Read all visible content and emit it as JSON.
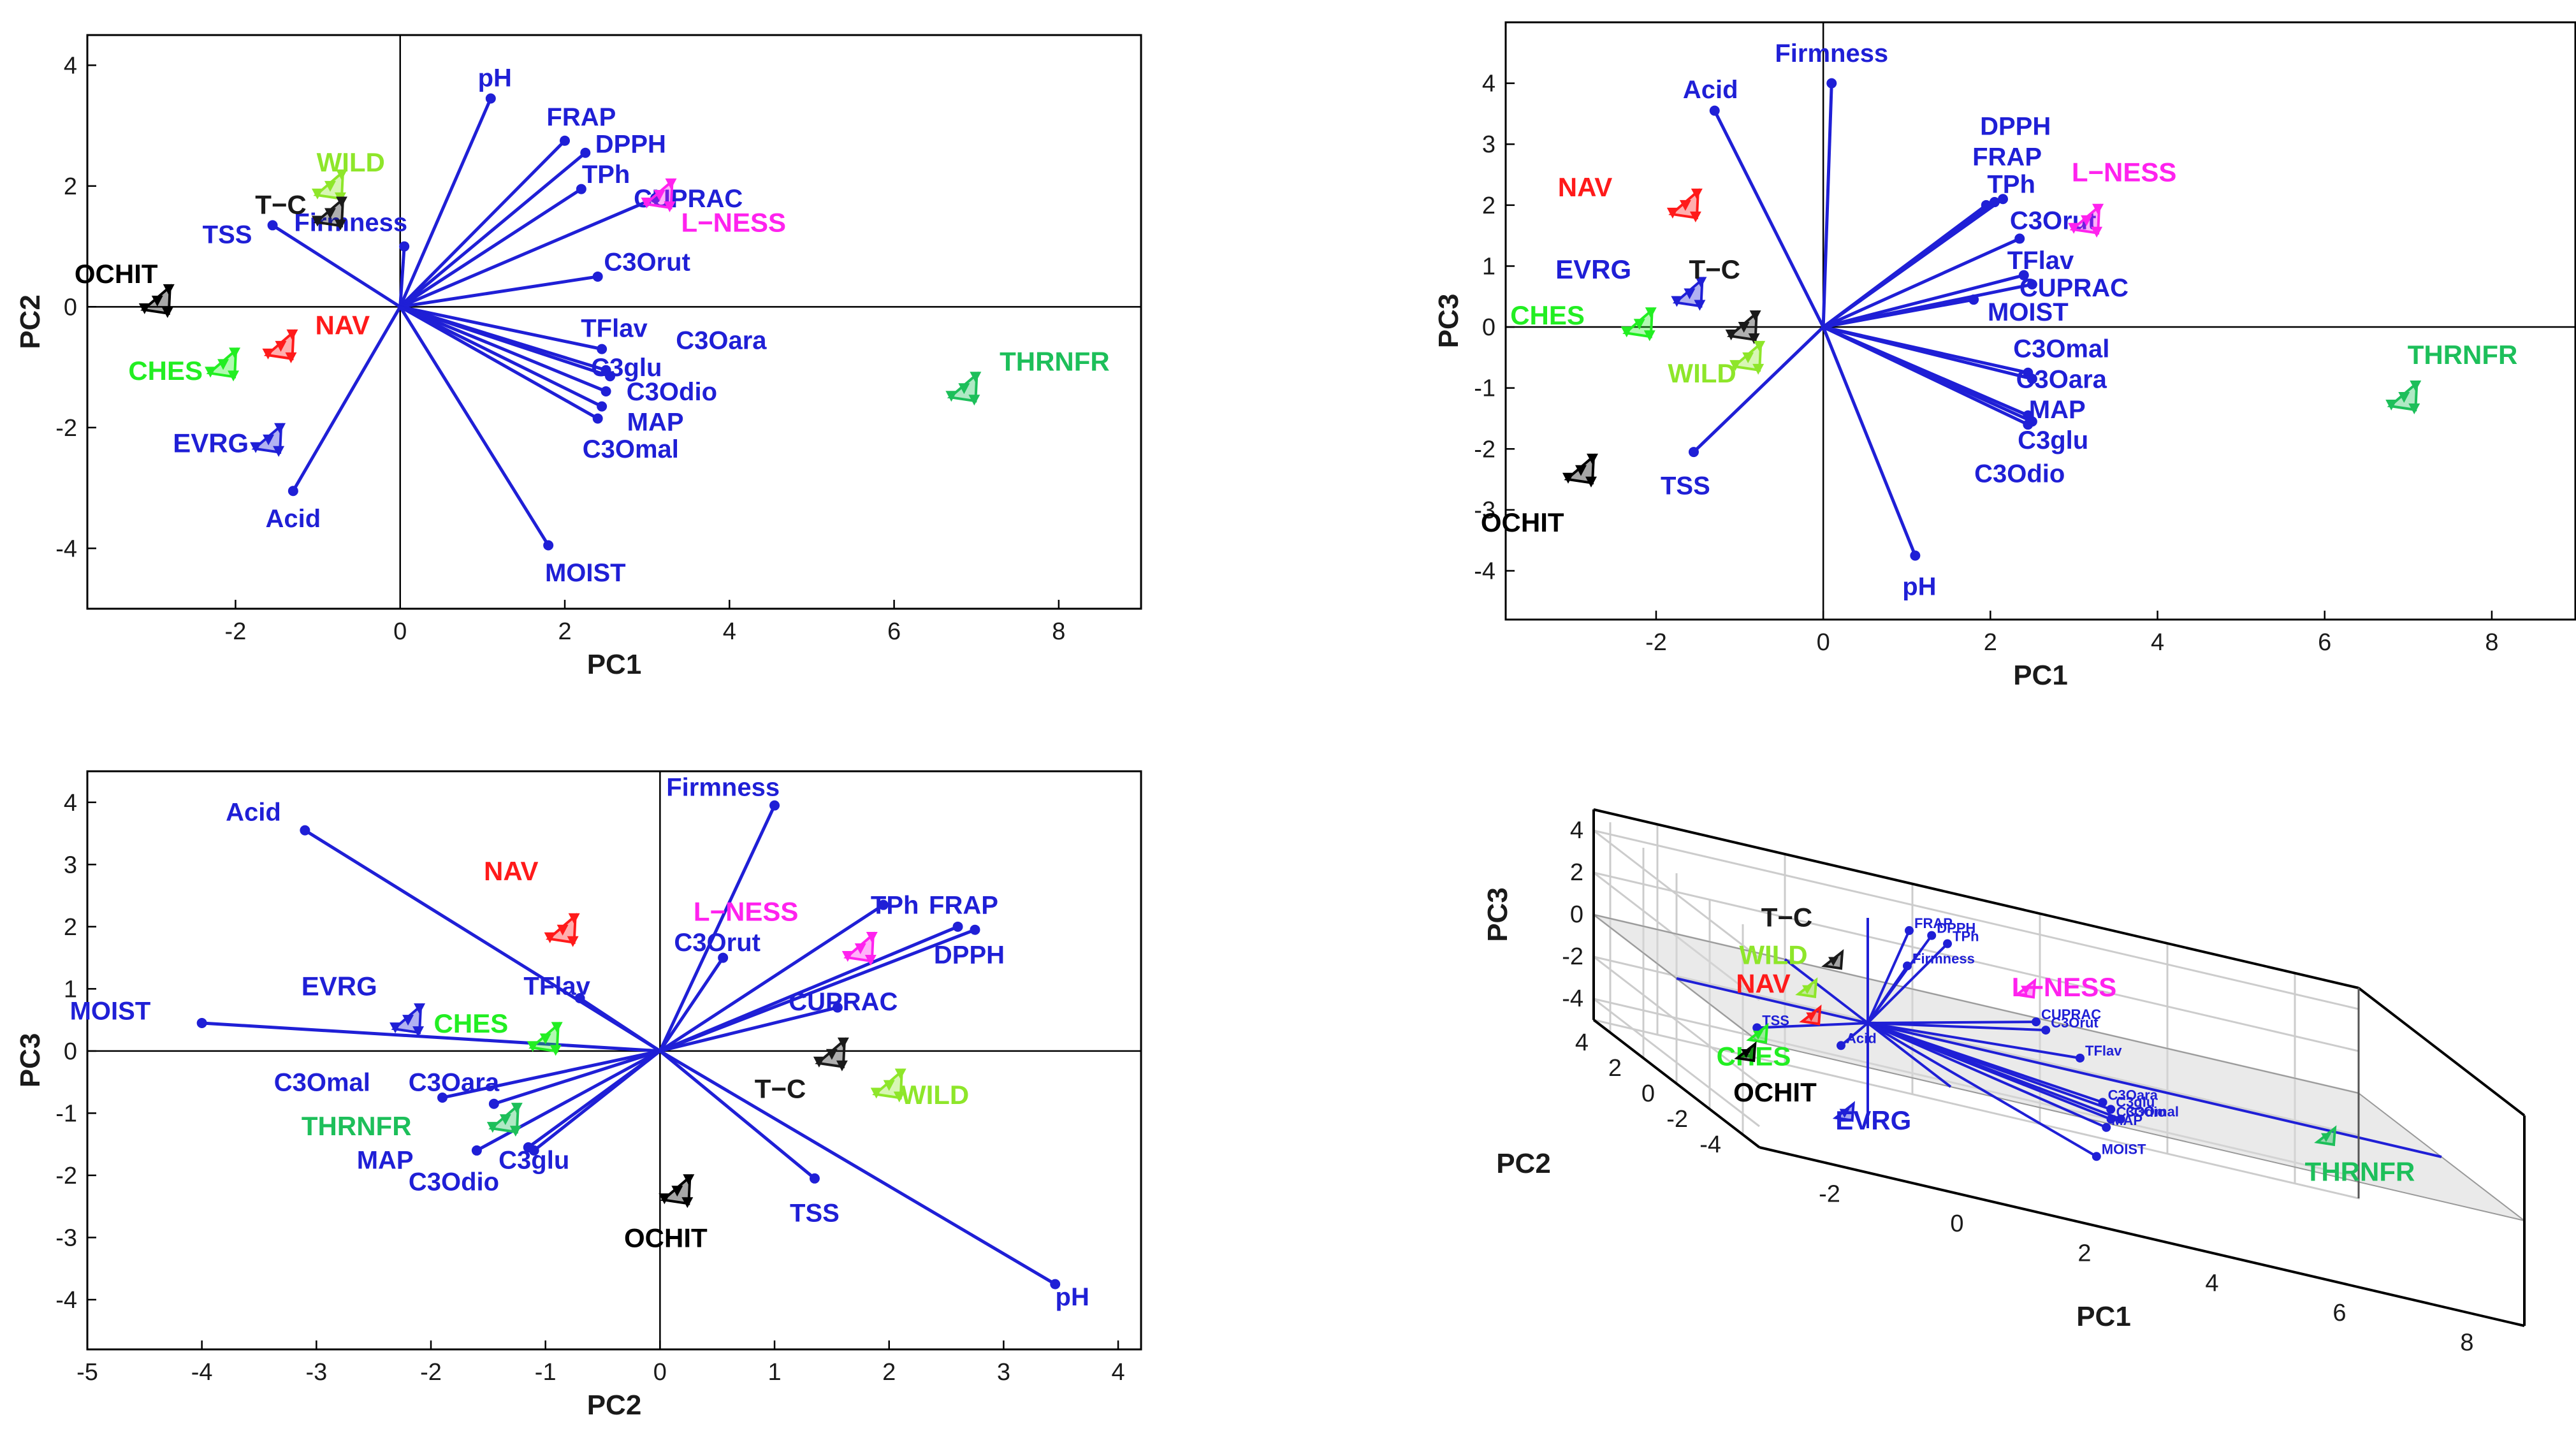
{
  "colors": {
    "vector": "#1f1fd6",
    "axis": "#000000"
  },
  "chart_data": [
    {
      "type": "scatter",
      "title": "",
      "xlabel": "PC1",
      "ylabel": "PC2",
      "xlim": [
        -3.8,
        9
      ],
      "ylim": [
        -5,
        4.5
      ],
      "xticks": [
        -2,
        0,
        2,
        4,
        6,
        8
      ],
      "yticks": [
        -4,
        -2,
        0,
        2,
        4
      ],
      "vectors": [
        {
          "name": "pH",
          "x": 1.1,
          "y": 3.45,
          "lx": 1.15,
          "ly": 3.8
        },
        {
          "name": "FRAP",
          "x": 2.0,
          "y": 2.75,
          "lx": 2.2,
          "ly": 3.15
        },
        {
          "name": "DPPH",
          "x": 2.25,
          "y": 2.55,
          "lx": 2.8,
          "ly": 2.7
        },
        {
          "name": "TPh",
          "x": 2.2,
          "y": 1.95,
          "lx": 2.5,
          "ly": 2.2
        },
        {
          "name": "CUPRAC",
          "x": 3.1,
          "y": 1.8,
          "lx": 3.5,
          "ly": 1.8
        },
        {
          "name": "Firmness",
          "x": 0.05,
          "y": 1.0,
          "lx": -0.6,
          "ly": 1.4
        },
        {
          "name": "TSS",
          "x": -1.55,
          "y": 1.35,
          "lx": -2.1,
          "ly": 1.2
        },
        {
          "name": "C3Orut",
          "x": 2.4,
          "y": 0.5,
          "lx": 3.0,
          "ly": 0.75
        },
        {
          "name": "TFlav",
          "x": 2.45,
          "y": -0.7,
          "lx": 2.6,
          "ly": -0.35
        },
        {
          "name": "C3Oara",
          "x": 2.5,
          "y": -1.05,
          "lx": 3.9,
          "ly": -0.55
        },
        {
          "name": "C3glu",
          "x": 2.55,
          "y": -1.15,
          "lx": 2.75,
          "ly": -1.0
        },
        {
          "name": "C3Odio",
          "x": 2.5,
          "y": -1.4,
          "lx": 3.3,
          "ly": -1.4
        },
        {
          "name": "MAP",
          "x": 2.45,
          "y": -1.65,
          "lx": 3.1,
          "ly": -1.9
        },
        {
          "name": "C3Omal",
          "x": 2.4,
          "y": -1.85,
          "lx": 2.8,
          "ly": -2.35
        },
        {
          "name": "Acid",
          "x": -1.3,
          "y": -3.05,
          "lx": -1.3,
          "ly": -3.5
        },
        {
          "name": "MOIST",
          "x": 1.8,
          "y": -3.95,
          "lx": 2.25,
          "ly": -4.4
        }
      ],
      "groups": [
        {
          "name": "WILD",
          "color": "#8ee62a",
          "x": -0.85,
          "y": 2.0,
          "lx": -0.6,
          "ly": 2.4
        },
        {
          "name": "T−C",
          "color": "#1a1a1a",
          "x": -0.85,
          "y": 1.55,
          "lx": -1.45,
          "ly": 1.7
        },
        {
          "name": "L−NESS",
          "color": "#ff22ee",
          "x": 3.15,
          "y": 1.85,
          "lx": 4.05,
          "ly": 1.4
        },
        {
          "name": "OCHIT",
          "color": "#000000",
          "x": -2.95,
          "y": 0.1,
          "lx": -3.45,
          "ly": 0.55
        },
        {
          "name": "NAV",
          "color": "#ff1a1a",
          "x": -1.45,
          "y": -0.65,
          "lx": -0.7,
          "ly": -0.3
        },
        {
          "name": "CHES",
          "color": "#22ee22",
          "x": -2.15,
          "y": -0.95,
          "lx": -2.85,
          "ly": -1.05
        },
        {
          "name": "EVRG",
          "color": "#1f1fd6",
          "x": -1.6,
          "y": -2.2,
          "lx": -2.3,
          "ly": -2.25
        },
        {
          "name": "THRNFR",
          "color": "#1dbf5a",
          "x": 6.85,
          "y": -1.35,
          "lx": 7.95,
          "ly": -0.9
        }
      ]
    },
    {
      "type": "scatter",
      "title": "",
      "xlabel": "PC1",
      "ylabel": "PC3",
      "xlim": [
        -3.8,
        9
      ],
      "ylim": [
        -4.8,
        5
      ],
      "xticks": [
        -2,
        0,
        2,
        4,
        6,
        8
      ],
      "yticks": [
        -4,
        -3,
        -2,
        -1,
        0,
        1,
        2,
        3,
        4
      ],
      "vectors": [
        {
          "name": "Firmness",
          "x": 0.1,
          "y": 4.0,
          "lx": 0.1,
          "ly": 4.5
        },
        {
          "name": "Acid",
          "x": -1.3,
          "y": 3.55,
          "lx": -1.35,
          "ly": 3.9
        },
        {
          "name": "DPPH",
          "x": 2.05,
          "y": 2.05,
          "lx": 2.3,
          "ly": 3.3
        },
        {
          "name": "FRAP",
          "x": 1.95,
          "y": 2.0,
          "lx": 2.2,
          "ly": 2.8
        },
        {
          "name": "TPh",
          "x": 2.15,
          "y": 2.1,
          "lx": 2.25,
          "ly": 2.35
        },
        {
          "name": "C3Orut",
          "x": 2.35,
          "y": 1.45,
          "lx": 2.75,
          "ly": 1.75
        },
        {
          "name": "TFlav",
          "x": 2.4,
          "y": 0.85,
          "lx": 2.6,
          "ly": 1.1
        },
        {
          "name": "CUPRAC",
          "x": 2.5,
          "y": 0.7,
          "lx": 3.0,
          "ly": 0.65
        },
        {
          "name": "MOIST",
          "x": 1.8,
          "y": 0.45,
          "lx": 2.45,
          "ly": 0.25
        },
        {
          "name": "C3Omal",
          "x": 2.45,
          "y": -0.75,
          "lx": 2.85,
          "ly": -0.35
        },
        {
          "name": "C3Oara",
          "x": 2.5,
          "y": -0.85,
          "lx": 2.85,
          "ly": -0.85
        },
        {
          "name": "MAP",
          "x": 2.45,
          "y": -1.45,
          "lx": 2.8,
          "ly": -1.35
        },
        {
          "name": "C3glu",
          "x": 2.5,
          "y": -1.55,
          "lx": 2.75,
          "ly": -1.85
        },
        {
          "name": "C3Odio",
          "x": 2.45,
          "y": -1.6,
          "lx": 2.35,
          "ly": -2.4
        },
        {
          "name": "TSS",
          "x": -1.55,
          "y": -2.05,
          "lx": -1.65,
          "ly": -2.6
        },
        {
          "name": "pH",
          "x": 1.1,
          "y": -3.75,
          "lx": 1.15,
          "ly": -4.25
        }
      ],
      "groups": [
        {
          "name": "NAV",
          "color": "#ff1a1a",
          "x": -1.65,
          "y": 2.0,
          "lx": -2.85,
          "ly": 2.3
        },
        {
          "name": "L−NESS",
          "color": "#ff22ee",
          "x": 3.15,
          "y": 1.75,
          "lx": 3.6,
          "ly": 2.55
        },
        {
          "name": "EVRG",
          "color": "#1f1fd6",
          "x": -1.6,
          "y": 0.55,
          "lx": -2.75,
          "ly": 0.95
        },
        {
          "name": "T−C",
          "color": "#1a1a1a",
          "x": -0.95,
          "y": 0.0,
          "lx": -1.3,
          "ly": 0.95
        },
        {
          "name": "CHES",
          "color": "#22ee22",
          "x": -2.2,
          "y": 0.05,
          "lx": -3.3,
          "ly": 0.2
        },
        {
          "name": "WILD",
          "color": "#8ee62a",
          "x": -0.9,
          "y": -0.5,
          "lx": -1.45,
          "ly": -0.75
        },
        {
          "name": "THRNFR",
          "color": "#1dbf5a",
          "x": 6.95,
          "y": -1.15,
          "lx": 7.65,
          "ly": -0.45
        },
        {
          "name": "OCHIT",
          "color": "#000000",
          "x": -2.9,
          "y": -2.35,
          "lx": -3.6,
          "ly": -3.2
        }
      ]
    },
    {
      "type": "scatter",
      "title": "",
      "xlabel": "PC2",
      "ylabel": "PC3",
      "xlim": [
        -5,
        4.2
      ],
      "ylim": [
        -4.8,
        4.5
      ],
      "xticks": [
        -5,
        -4,
        -3,
        -2,
        -1,
        0,
        1,
        2,
        3,
        4
      ],
      "yticks": [
        -4,
        -3,
        -2,
        -1,
        0,
        1,
        2,
        3,
        4
      ],
      "vectors": [
        {
          "name": "Acid",
          "x": -3.1,
          "y": 3.55,
          "lx": -3.55,
          "ly": 3.85
        },
        {
          "name": "Firmness",
          "x": 1.0,
          "y": 3.95,
          "lx": 0.55,
          "ly": 4.25
        },
        {
          "name": "TPh",
          "x": 1.95,
          "y": 2.35,
          "lx": 2.05,
          "ly": 2.35
        },
        {
          "name": "FRAP",
          "x": 2.6,
          "y": 2.0,
          "lx": 2.65,
          "ly": 2.35
        },
        {
          "name": "DPPH",
          "x": 2.75,
          "y": 1.95,
          "lx": 2.7,
          "ly": 1.55
        },
        {
          "name": "C3Orut",
          "x": 0.55,
          "y": 1.5,
          "lx": 0.5,
          "ly": 1.75
        },
        {
          "name": "CUPRAC",
          "x": 1.55,
          "y": 0.7,
          "lx": 1.6,
          "ly": 0.8
        },
        {
          "name": "TFlav",
          "x": -0.7,
          "y": 0.85,
          "lx": -0.9,
          "ly": 1.05
        },
        {
          "name": "MOIST",
          "x": -4.0,
          "y": 0.45,
          "lx": -4.8,
          "ly": 0.65
        },
        {
          "name": "C3Omal",
          "x": -1.9,
          "y": -0.75,
          "lx": -2.95,
          "ly": -0.5
        },
        {
          "name": "C3Oara",
          "x": -1.45,
          "y": -0.85,
          "lx": -1.8,
          "ly": -0.5
        },
        {
          "name": "C3glu",
          "x": -1.15,
          "y": -1.55,
          "lx": -1.1,
          "ly": -1.75
        },
        {
          "name": "MAP",
          "x": -1.6,
          "y": -1.6,
          "lx": -2.4,
          "ly": -1.75
        },
        {
          "name": "C3Odio",
          "x": -1.1,
          "y": -1.6,
          "lx": -1.8,
          "ly": -2.1
        },
        {
          "name": "TSS",
          "x": 1.35,
          "y": -2.05,
          "lx": 1.35,
          "ly": -2.6
        },
        {
          "name": "pH",
          "x": 3.45,
          "y": -3.75,
          "lx": 3.6,
          "ly": -3.95
        }
      ],
      "groups": [
        {
          "name": "NAV",
          "color": "#ff1a1a",
          "x": -0.85,
          "y": 1.95,
          "lx": -1.3,
          "ly": 2.9
        },
        {
          "name": "L−NESS",
          "color": "#ff22ee",
          "x": 1.75,
          "y": 1.65,
          "lx": 0.75,
          "ly": 2.25
        },
        {
          "name": "EVRG",
          "color": "#1f1fd6",
          "x": -2.2,
          "y": 0.5,
          "lx": -2.8,
          "ly": 1.05
        },
        {
          "name": "CHES",
          "color": "#22ee22",
          "x": -1.0,
          "y": 0.2,
          "lx": -1.65,
          "ly": 0.45
        },
        {
          "name": "THRNFR",
          "color": "#1dbf5a",
          "x": -1.35,
          "y": -1.1,
          "lx": -2.65,
          "ly": -1.2
        },
        {
          "name": "T−C",
          "color": "#1a1a1a",
          "x": 1.5,
          "y": -0.05,
          "lx": 1.05,
          "ly": -0.6
        },
        {
          "name": "WILD",
          "color": "#8ee62a",
          "x": 2.0,
          "y": -0.55,
          "lx": 2.4,
          "ly": -0.7
        },
        {
          "name": "OCHIT",
          "color": "#000000",
          "x": 0.15,
          "y": -2.25,
          "lx": 0.05,
          "ly": -3.0
        }
      ]
    },
    {
      "type": "scatter",
      "title": "",
      "xlabel": "PC1",
      "ylabel": "PC3",
      "zlabel": "PC2",
      "xticks": [
        -2,
        0,
        2,
        4,
        6,
        8
      ],
      "zticks": [
        4,
        2,
        0,
        -2,
        -4
      ],
      "yticks": [
        4,
        2,
        0,
        -2,
        -4
      ],
      "vectors": [
        {
          "name": "Firmness"
        },
        {
          "name": "FRAP"
        },
        {
          "name": "DPPH"
        },
        {
          "name": "TPh"
        },
        {
          "name": "CUPRAC"
        },
        {
          "name": "C3Orut"
        },
        {
          "name": "TFlav"
        },
        {
          "name": "C3Oara"
        },
        {
          "name": "C3glu"
        },
        {
          "name": "C3Omal"
        },
        {
          "name": "C3Odio"
        },
        {
          "name": "MAP"
        },
        {
          "name": "MOIST"
        },
        {
          "name": "TSS"
        },
        {
          "name": "Acid"
        }
      ],
      "groups": [
        {
          "name": "L−NESS",
          "color": "#ff22ee"
        },
        {
          "name": "T−C",
          "color": "#1a1a1a"
        },
        {
          "name": "WILD",
          "color": "#8ee62a"
        },
        {
          "name": "NAV",
          "color": "#ff1a1a"
        },
        {
          "name": "CHES",
          "color": "#22ee22"
        },
        {
          "name": "EVRG",
          "color": "#1f1fd6"
        },
        {
          "name": "OCHIT",
          "color": "#000000"
        },
        {
          "name": "THRNFR",
          "color": "#1dbf5a"
        }
      ]
    }
  ]
}
